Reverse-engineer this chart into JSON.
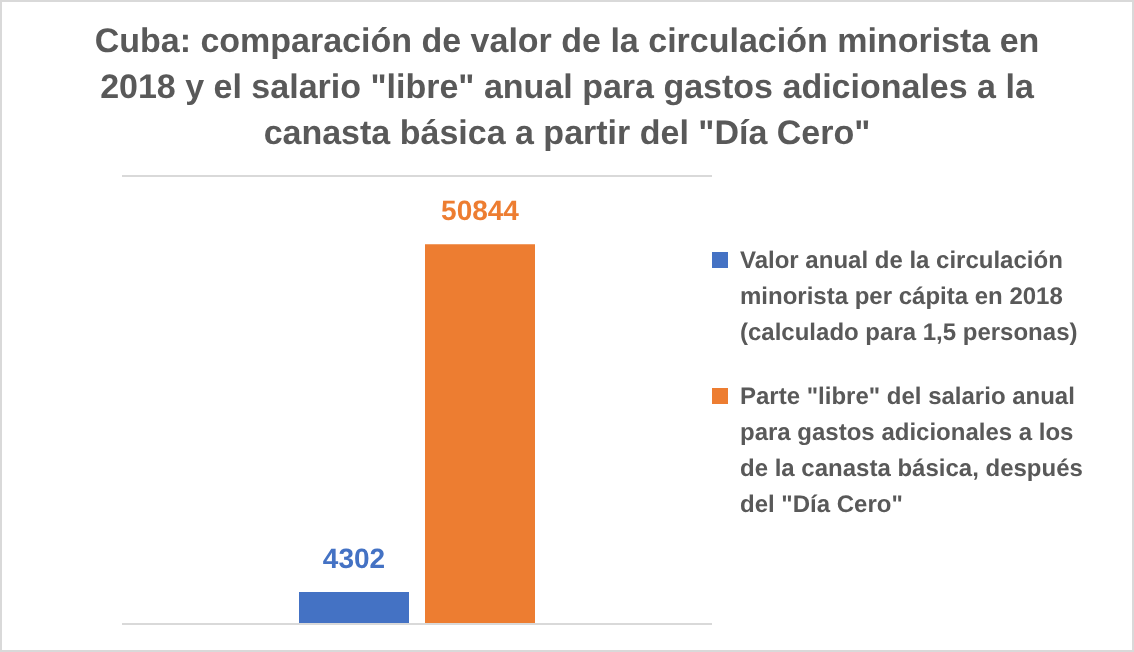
{
  "chart_data": {
    "type": "bar",
    "title": "Cuba: comparación de valor de la circulación minorista en 2018 y el salario \"libre\" anual para gastos adicionales a la canasta básica a partir del \"Día Cero\"",
    "categories": [
      null
    ],
    "series": [
      {
        "name": "Valor anual de la circulación minorista per cápita en 2018 (calculado para 1,5 personas)",
        "color": "#4472c4",
        "values": [
          4302
        ]
      },
      {
        "name": "Parte \"libre\" del salario anual para gastos adicionales a los de la canasta básica, después del \"Día Cero\"",
        "color": "#ed7d31",
        "values": [
          50844
        ]
      }
    ],
    "ylim": [
      0,
      60000
    ],
    "grid": "y",
    "legend": "right",
    "tick_labels": false,
    "data_labels": true
  }
}
